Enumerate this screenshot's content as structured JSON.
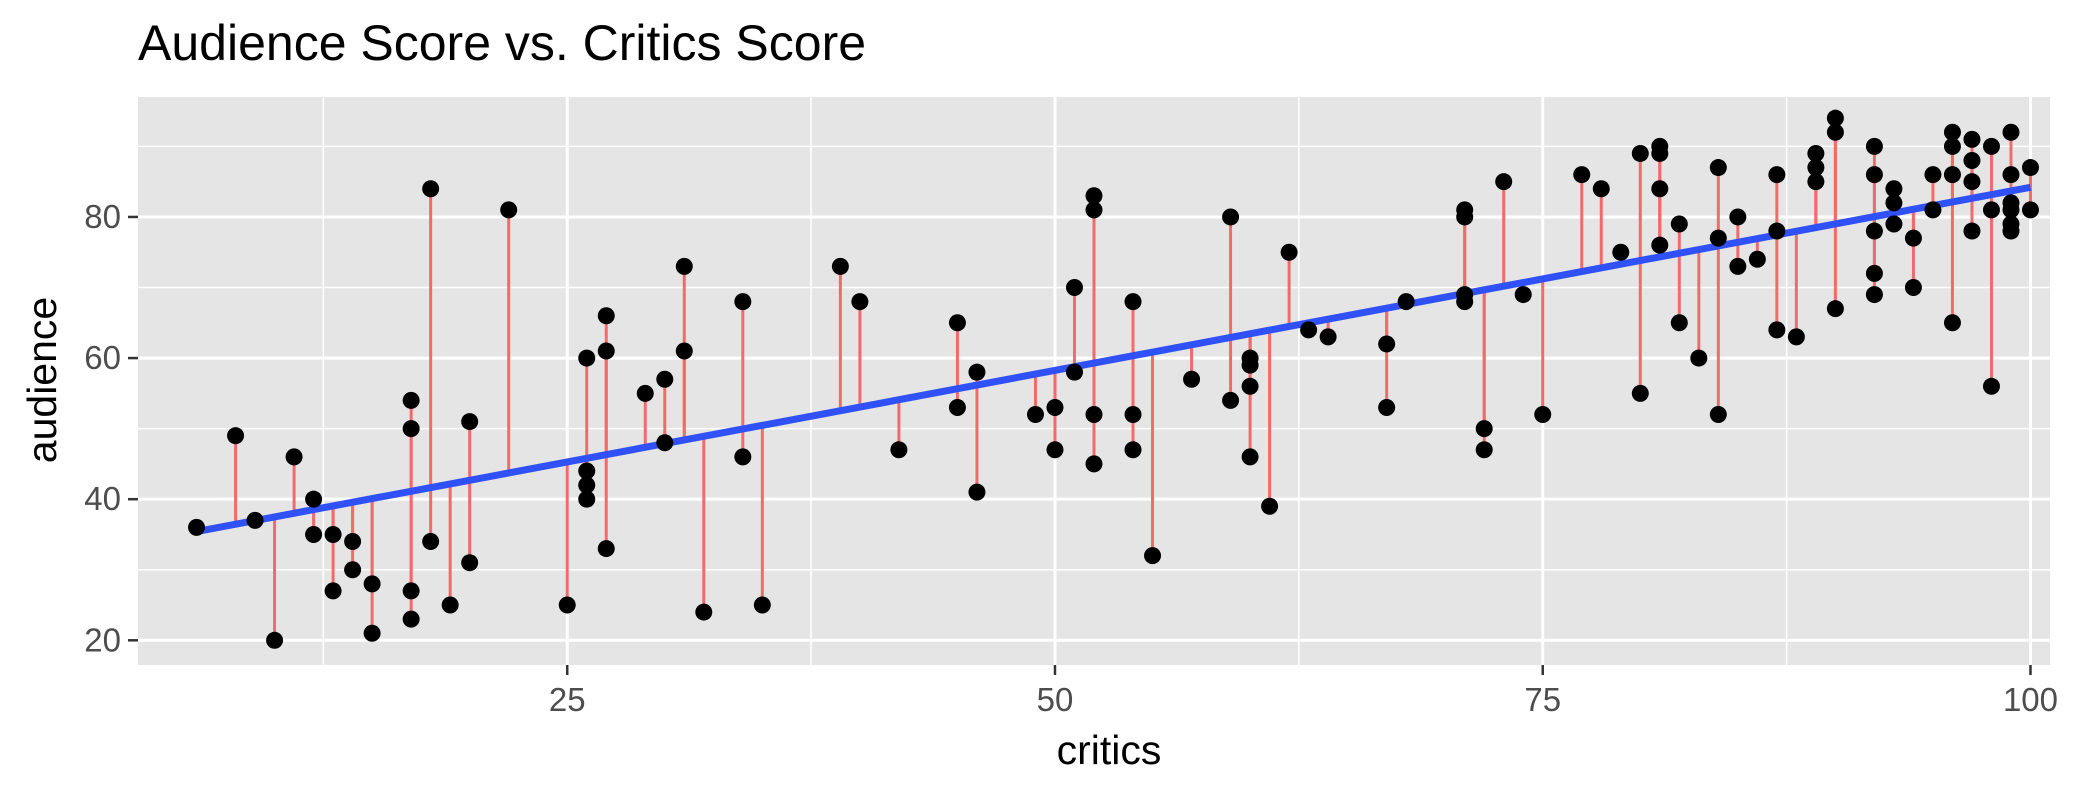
{
  "chart_data": {
    "type": "scatter",
    "title": "Audience Score vs. Critics Score",
    "xlabel": "critics",
    "ylabel": "audience",
    "xlim": [
      3,
      101
    ],
    "ylim": [
      16.5,
      97
    ],
    "x_ticks": [
      25,
      50,
      75,
      100
    ],
    "x_minor_ticks": [
      12.5,
      37.5,
      62.5,
      87.5
    ],
    "y_ticks": [
      20,
      40,
      60,
      80
    ],
    "y_minor_ticks": [
      30,
      50,
      70,
      90
    ],
    "grid": true,
    "legend": "none",
    "fit_line": {
      "intercept": 32.3,
      "slope": 0.519
    },
    "series": [
      {
        "x": [
          6,
          8,
          9,
          10,
          11,
          12,
          12,
          13,
          13,
          14,
          14,
          15,
          15,
          17,
          17,
          17,
          17,
          18,
          18,
          19,
          20,
          20,
          22,
          25,
          26,
          26,
          26,
          26,
          27,
          27,
          27,
          29,
          30,
          30,
          31,
          31,
          32,
          34,
          34,
          35,
          39,
          40,
          42,
          45,
          45,
          46,
          46,
          49,
          50,
          50,
          51,
          51,
          52,
          52,
          52,
          52,
          54,
          54,
          54,
          55,
          57,
          59,
          59,
          60,
          60,
          60,
          60,
          61,
          62,
          63,
          64,
          67,
          67,
          68,
          71,
          71,
          71,
          71,
          72,
          72,
          73,
          74,
          75,
          77,
          78,
          79,
          80,
          80,
          81,
          81,
          81,
          81,
          82,
          82,
          83,
          84,
          84,
          84,
          85,
          85,
          86,
          87,
          87,
          87,
          88,
          89,
          89,
          89,
          90,
          90,
          90,
          92,
          92,
          92,
          92,
          92,
          93,
          93,
          93,
          94,
          94,
          95,
          95,
          96,
          96,
          96,
          96,
          97,
          97,
          97,
          97,
          98,
          98,
          98,
          99,
          99,
          99,
          99,
          99,
          99,
          100,
          100
        ],
        "y": [
          36,
          49,
          37,
          20,
          46,
          35,
          40,
          27,
          35,
          30,
          34,
          21,
          28,
          23,
          27,
          50,
          54,
          34,
          84,
          25,
          31,
          51,
          81,
          25,
          42,
          60,
          44,
          40,
          33,
          66,
          61,
          55,
          48,
          57,
          61,
          73,
          24,
          68,
          46,
          25,
          73,
          68,
          47,
          53,
          65,
          41,
          58,
          52,
          47,
          53,
          58,
          70,
          45,
          81,
          83,
          52,
          47,
          68,
          52,
          32,
          57,
          54,
          80,
          56,
          60,
          59,
          46,
          39,
          75,
          64,
          63,
          62,
          53,
          68,
          69,
          80,
          81,
          68,
          50,
          47,
          85,
          69,
          52,
          86,
          84,
          75,
          55,
          89,
          90,
          76,
          89,
          84,
          79,
          65,
          60,
          52,
          87,
          77,
          73,
          80,
          74,
          64,
          86,
          78,
          63,
          85,
          89,
          87,
          67,
          94,
          92,
          69,
          90,
          86,
          78,
          72,
          84,
          82,
          79,
          77,
          70,
          86,
          81,
          92,
          90,
          86,
          65,
          91,
          88,
          85,
          78,
          90,
          81,
          56,
          92,
          86,
          79,
          81,
          82,
          78,
          87,
          81
        ]
      }
    ]
  },
  "colors": {
    "panel": "#e5e5e5",
    "grid": "#ffffff",
    "point": "#000000",
    "residual": "#f26b6b",
    "fit_line": "#3050f8",
    "tick_label": "#4d4d4d",
    "tick_mark": "#333333"
  }
}
